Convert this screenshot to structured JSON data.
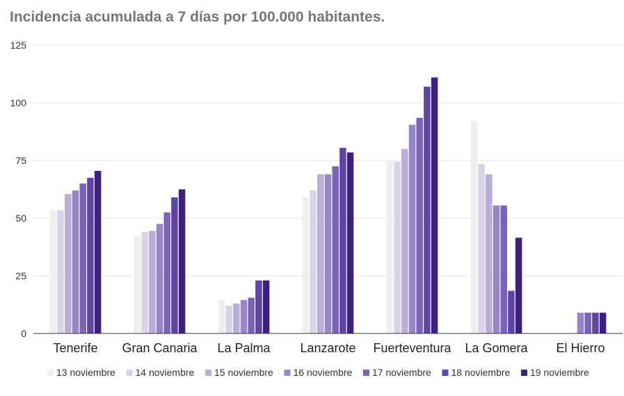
{
  "chart_data": {
    "type": "bar",
    "title": "Incidencia acumulada a 7 días por 100.000 habitantes.",
    "xlabel": "",
    "ylabel": "",
    "ylim": [
      0,
      125
    ],
    "yticks": [
      "0",
      "25",
      "50",
      "75",
      "100",
      "125"
    ],
    "grid": true,
    "legend_position": "bottom",
    "categories": [
      "Tenerife",
      "Gran Canaria",
      "La Palma",
      "Lanzarote",
      "Fuerteventura",
      "La Gomera",
      "El Hierro"
    ],
    "series": [
      {
        "name": "13 noviembre",
        "color": "#efefef",
        "values": [
          53.5,
          42.5,
          14.5,
          59,
          75,
          92,
          0
        ]
      },
      {
        "name": "14 noviembre",
        "color": "#d8d3e8",
        "values": [
          53.5,
          44,
          12,
          62,
          74.5,
          73.5,
          0
        ]
      },
      {
        "name": "15 noviembre",
        "color": "#b8aed7",
        "values": [
          60.5,
          44.5,
          13,
          69,
          80,
          69,
          0
        ]
      },
      {
        "name": "16 noviembre",
        "color": "#9586c6",
        "values": [
          62,
          47.5,
          14.5,
          69,
          90.5,
          55.5,
          9
        ]
      },
      {
        "name": "17 noviembre",
        "color": "#7a63b8",
        "values": [
          65,
          52.5,
          15.5,
          72.5,
          93.5,
          55.5,
          9
        ]
      },
      {
        "name": "18 noviembre",
        "color": "#5f45a3",
        "values": [
          67.5,
          59,
          23,
          80.5,
          107,
          18.5,
          9
        ]
      },
      {
        "name": "19 noviembre",
        "color": "#3d1f7f",
        "values": [
          70.5,
          62.5,
          23,
          78.5,
          111,
          41.5,
          9
        ]
      }
    ]
  }
}
